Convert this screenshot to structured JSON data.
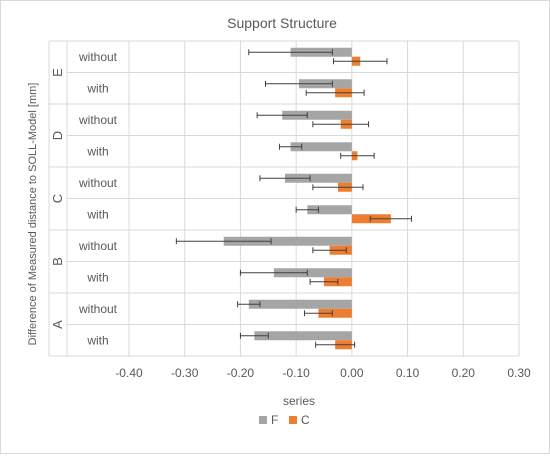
{
  "chart_data": {
    "type": "bar",
    "orientation": "horizontal",
    "title": "Support Structure",
    "xlabel": "series",
    "ylabel": "Difference of Measured distance to SOLL-Model [mm]",
    "xlim": [
      -0.4,
      0.3
    ],
    "xticks": [
      "-0.40",
      "-0.30",
      "-0.20",
      "-0.10",
      "0.00",
      "0.10",
      "0.20",
      "0.30"
    ],
    "xtick_values": [
      -0.4,
      -0.3,
      -0.2,
      -0.1,
      0.0,
      0.1,
      0.2,
      0.3
    ],
    "grid": true,
    "legend_position": "bottom",
    "groups": [
      "E",
      "D",
      "C",
      "B",
      "A"
    ],
    "rows": [
      {
        "group": "E",
        "label": "without"
      },
      {
        "group": "E",
        "label": "with"
      },
      {
        "group": "D",
        "label": "without"
      },
      {
        "group": "D",
        "label": "with"
      },
      {
        "group": "C",
        "label": "without"
      },
      {
        "group": "C",
        "label": "with"
      },
      {
        "group": "B",
        "label": "without"
      },
      {
        "group": "B",
        "label": "with"
      },
      {
        "group": "A",
        "label": "without"
      },
      {
        "group": "A",
        "label": "with"
      }
    ],
    "series": [
      {
        "name": "F",
        "color": "#a5a5a5",
        "values": [
          -0.11,
          -0.095,
          -0.125,
          -0.11,
          -0.12,
          -0.08,
          -0.23,
          -0.14,
          -0.185,
          -0.175
        ],
        "error": [
          0.075,
          0.06,
          0.045,
          0.02,
          0.045,
          0.02,
          0.085,
          0.06,
          0.02,
          0.025
        ]
      },
      {
        "name": "C",
        "color": "#ed7d31",
        "values": [
          0.015,
          -0.03,
          -0.02,
          0.01,
          -0.025,
          0.07,
          -0.04,
          -0.05,
          -0.06,
          -0.03
        ],
        "error": [
          0.048,
          0.052,
          0.05,
          0.03,
          0.045,
          0.037,
          0.03,
          0.025,
          0.025,
          0.035
        ]
      }
    ]
  }
}
